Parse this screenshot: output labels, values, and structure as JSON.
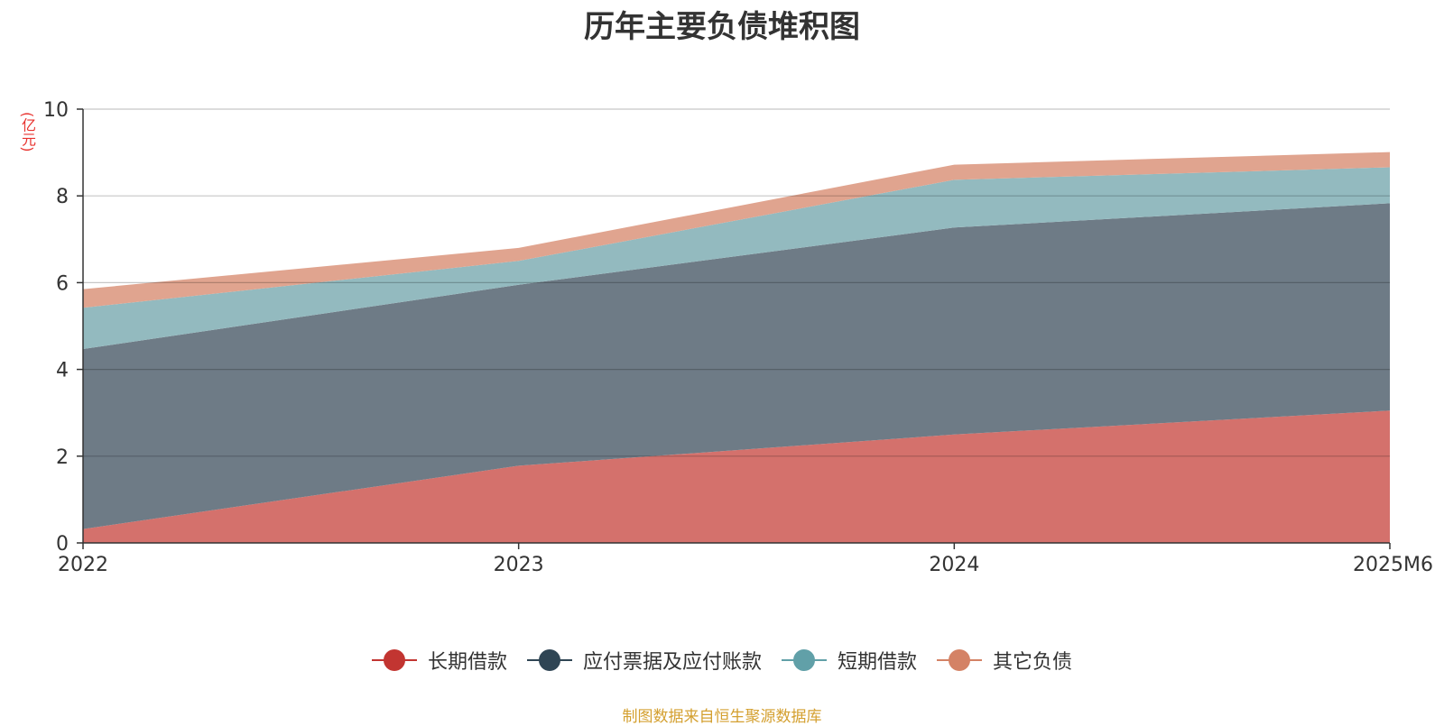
{
  "chart_data": {
    "type": "area",
    "stacked": true,
    "title": "历年主要负债堆积图",
    "y_unit_label": "(亿元)",
    "categories": [
      "2022",
      "2023",
      "2024",
      "2025M6"
    ],
    "ylim": [
      0,
      10
    ],
    "yticks": [
      0,
      2,
      4,
      6,
      8,
      10
    ],
    "grid": true,
    "legend_position": "bottom-center",
    "series": [
      {
        "name": "长期借款",
        "values": [
          0.32,
          1.78,
          2.5,
          3.05
        ],
        "fill": "#d4716c",
        "marker": "#c23531"
      },
      {
        "name": "应付票据及应付账款",
        "values": [
          4.15,
          4.17,
          4.77,
          4.78
        ],
        "fill": "#6e7b86",
        "marker": "#2f4554"
      },
      {
        "name": "短期借款",
        "values": [
          0.95,
          0.55,
          1.1,
          0.83
        ],
        "fill": "#93babf",
        "marker": "#61a0a8"
      },
      {
        "name": "其它负债",
        "values": [
          0.43,
          0.3,
          0.35,
          0.35
        ],
        "fill": "#e0a48f",
        "marker": "#d48265"
      }
    ]
  },
  "footer": {
    "source": "制图数据来自恒生聚源数据库"
  }
}
